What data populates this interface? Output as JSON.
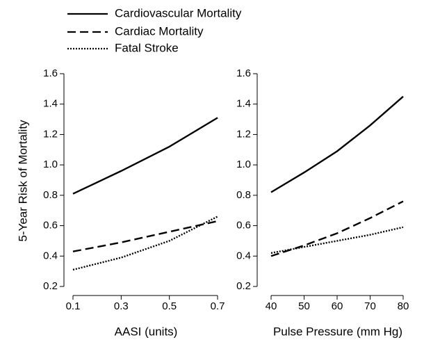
{
  "chart_data": [
    {
      "type": "line",
      "ylabel": "5-Year Risk of Mortality",
      "xlabel": "AASI (units)",
      "x": [
        0.1,
        0.3,
        0.5,
        0.7
      ],
      "series": [
        {
          "name": "Cardiovascular Mortality",
          "color": "#000000",
          "dash": "solid",
          "values": [
            0.81,
            0.96,
            1.12,
            1.31
          ]
        },
        {
          "name": "Cardiac Mortality",
          "color": "#000000",
          "dash": "dashed",
          "values": [
            0.43,
            0.49,
            0.56,
            0.63
          ]
        },
        {
          "name": "Fatal Stroke",
          "color": "#000000",
          "dash": "dotted",
          "values": [
            0.31,
            0.39,
            0.5,
            0.66
          ]
        }
      ],
      "xlim": [
        0.1,
        0.7
      ],
      "xticks": [
        0.1,
        0.3,
        0.5,
        0.7
      ],
      "ylim": [
        0.2,
        1.6
      ],
      "yticks": [
        0.2,
        0.4,
        0.6,
        0.8,
        {
          "value": 1.0,
          "label": "1.0"
        },
        1.2,
        1.4,
        1.6
      ]
    },
    {
      "type": "line",
      "xlabel": "Pulse Pressure (mm Hg)",
      "x": [
        40,
        50,
        60,
        70,
        80
      ],
      "series": [
        {
          "color": "#000000",
          "dash": "solid",
          "values": [
            0.82,
            0.95,
            1.09,
            1.26,
            1.45
          ]
        },
        {
          "color": "#000000",
          "dash": "dashed",
          "values": [
            0.4,
            0.47,
            0.55,
            0.65,
            0.76
          ]
        },
        {
          "color": "#000000",
          "dash": "dotted",
          "values": [
            0.42,
            0.46,
            0.5,
            0.54,
            0.59
          ]
        }
      ],
      "xlim": [
        40,
        80
      ],
      "xticks": [
        40,
        50,
        60,
        70,
        80
      ],
      "ylim": [
        0.2,
        1.6
      ],
      "yticks": [
        0.2,
        0.4,
        0.6,
        0.8,
        {
          "value": 1.0,
          "label": "1.0"
        },
        1.2,
        1.4,
        1.6
      ]
    }
  ]
}
